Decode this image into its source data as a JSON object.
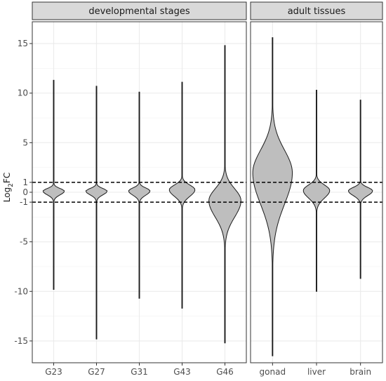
{
  "chart_data": {
    "type": "violin",
    "ylabel": {
      "base": "Log",
      "sub": "2",
      "rest": "FC"
    },
    "ylim": [
      -17.2,
      17.2
    ],
    "yticks": [
      -15,
      -10,
      -5,
      0,
      5,
      10,
      15
    ],
    "extra_yticks": [
      1,
      -1
    ],
    "reference_lines": [
      1,
      -1
    ],
    "grid": true,
    "fill_color": "#bebebe",
    "outline_color": "#1a1a1a",
    "panels": [
      {
        "title": "developmental stages",
        "categories": [
          "G23",
          "G27",
          "G31",
          "G43",
          "G46"
        ],
        "violins": [
          {
            "min": -9.8,
            "max": 11.3,
            "body_low": -0.7,
            "body_high": 0.7,
            "bulge_width": 0.5
          },
          {
            "min": -14.8,
            "max": 10.7,
            "body_low": -0.7,
            "body_high": 0.7,
            "bulge_width": 0.5
          },
          {
            "min": -10.7,
            "max": 10.1,
            "body_low": -0.8,
            "body_high": 0.8,
            "bulge_width": 0.5
          },
          {
            "min": -11.7,
            "max": 11.1,
            "body_low": -1.2,
            "body_high": 1.3,
            "bulge_width": 0.6
          },
          {
            "min": -15.2,
            "max": 14.8,
            "body_low": -4.5,
            "body_high": 1.8,
            "bulge_width": 0.75
          }
        ]
      },
      {
        "title": "adult tissues",
        "categories": [
          "gonad",
          "liver",
          "brain"
        ],
        "violins": [
          {
            "min": -16.5,
            "max": 15.6,
            "body_low": -5,
            "body_high": 7,
            "bulge_width": 0.9
          },
          {
            "min": -10.0,
            "max": 10.3,
            "body_low": -1.5,
            "body_high": 1.4,
            "bulge_width": 0.6
          },
          {
            "min": -8.7,
            "max": 9.3,
            "body_low": -0.9,
            "body_high": 0.9,
            "bulge_width": 0.55
          }
        ]
      }
    ]
  }
}
